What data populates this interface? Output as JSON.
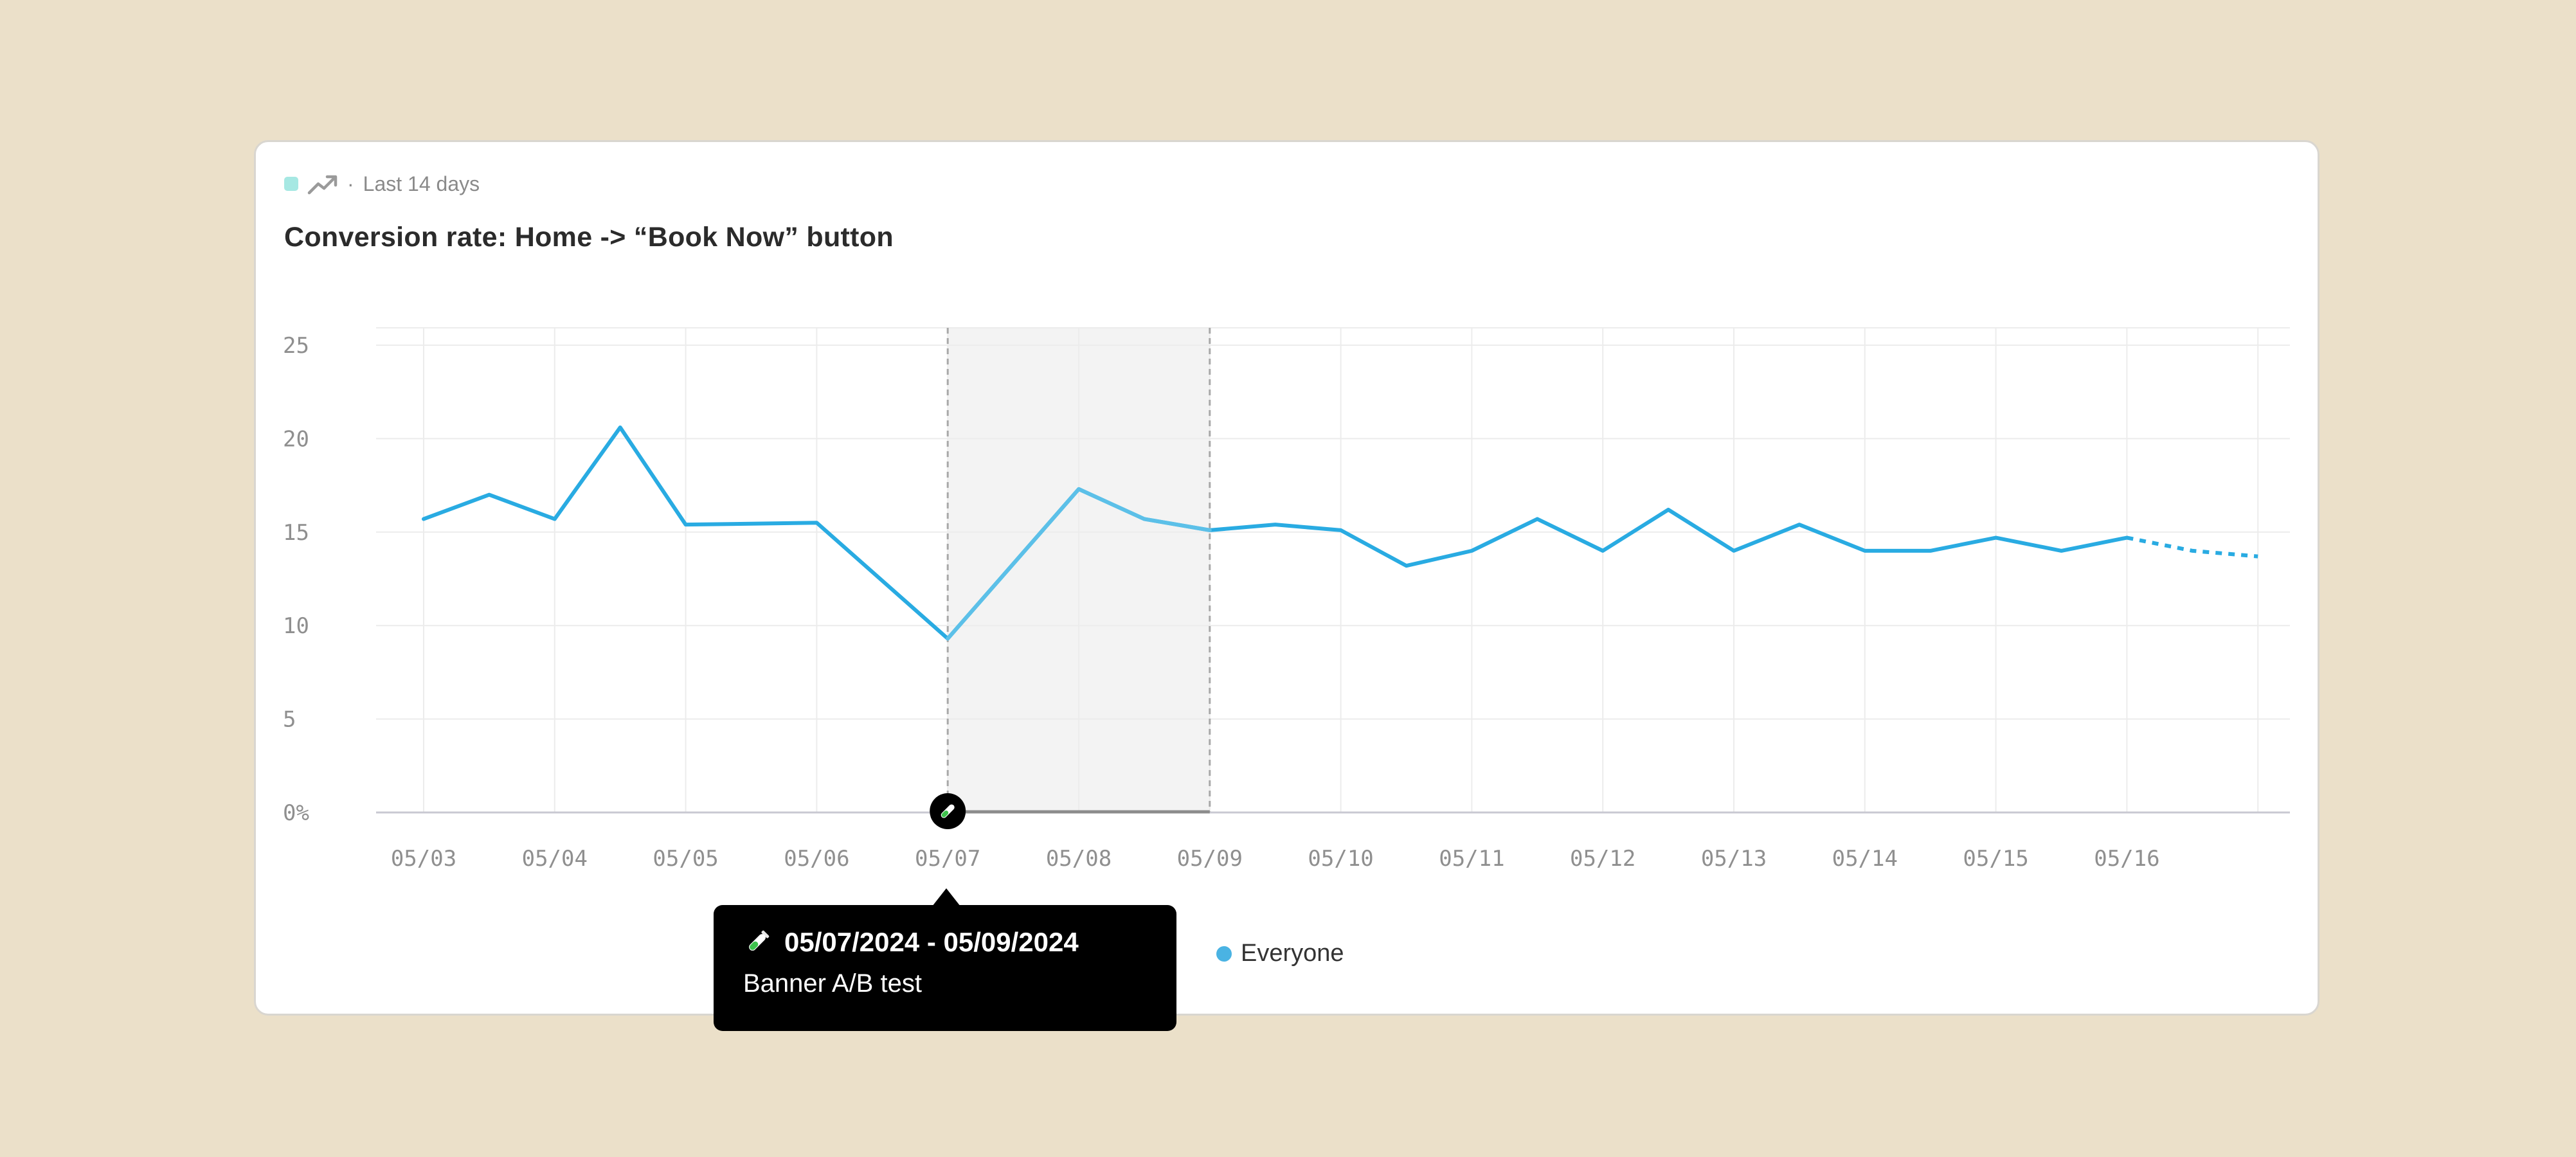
{
  "header": {
    "period": "Last 14 days",
    "separator": "·",
    "trend_icon": "trending-up-icon"
  },
  "title": "Conversion rate: Home -> “Book Now” button",
  "chart_data": {
    "type": "line",
    "title": "Conversion rate: Home -> “Book Now” button",
    "ylim": [
      0,
      25
    ],
    "y_ticks": [
      "0%",
      "5",
      "10",
      "15",
      "20",
      "25"
    ],
    "x_ticks": [
      "05/03",
      "05/04",
      "05/05",
      "05/06",
      "05/07",
      "05/08",
      "05/09",
      "05/10",
      "05/11",
      "05/12",
      "05/13",
      "05/14",
      "05/15",
      "05/16"
    ],
    "grid": true,
    "series": [
      {
        "name": "Everyone",
        "color": "#29abe2",
        "x": [
          0,
          0.5,
          1,
          1.5,
          2,
          3,
          4,
          5,
          5.5,
          6,
          6.5,
          7,
          7.5,
          8,
          8.5,
          9,
          9.5,
          10,
          10.5,
          11,
          11.5,
          12,
          12.5,
          13,
          13.5,
          14
        ],
        "values": [
          15.7,
          17.0,
          15.7,
          20.6,
          15.4,
          15.5,
          9.3,
          17.3,
          15.7,
          15.1,
          15.4,
          15.1,
          13.2,
          14.0,
          15.7,
          14.0,
          16.2,
          14.0,
          15.4,
          14.0,
          14.0,
          14.7,
          14.0,
          14.7,
          14.0,
          13.7
        ],
        "forecast_from_x": 13
      }
    ],
    "annotation": {
      "start_x": 4,
      "end_x": 6,
      "label": "05/07/2024 - 05/09/2024",
      "note": "Banner A/B test",
      "icon": "test-tube-icon"
    }
  },
  "legend": {
    "label": "Everyone",
    "color": "#4ab3e3"
  }
}
